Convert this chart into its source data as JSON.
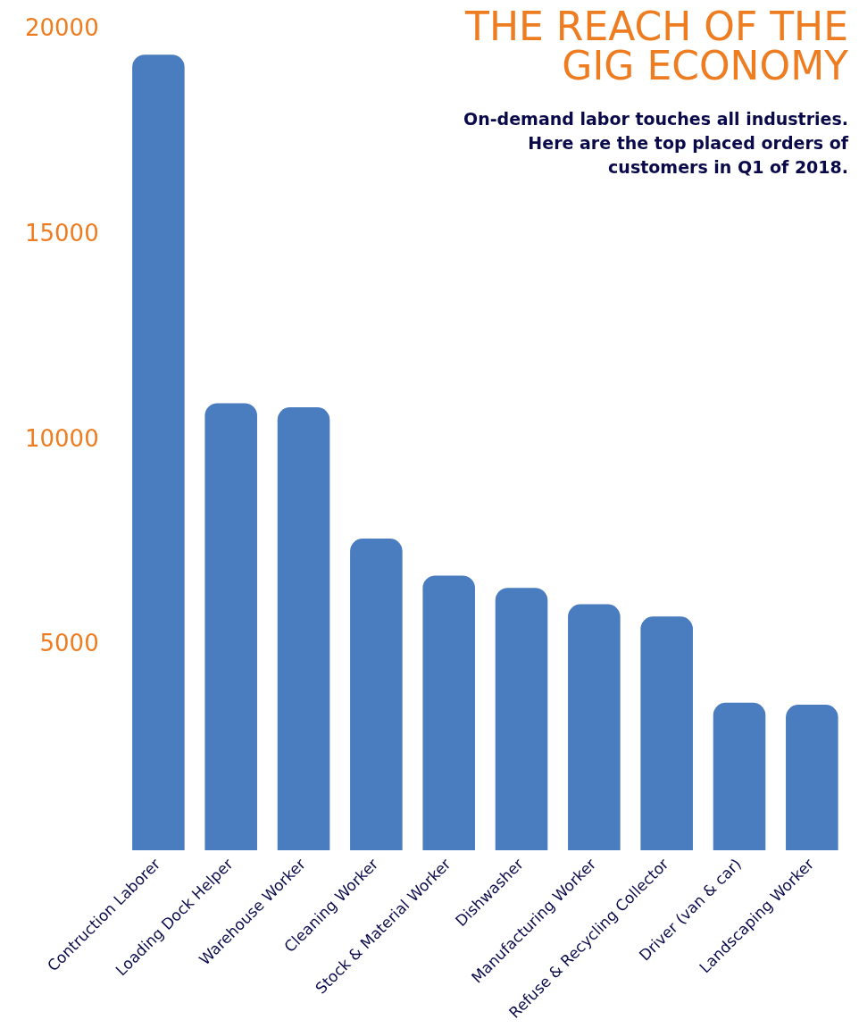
{
  "chart_data": {
    "type": "bar",
    "title": "THE REACH OF THE GIG ECONOMY",
    "subtitle": "On-demand labor touches all industries. Here are the top placed orders of customers in Q1 of 2018.",
    "categories": [
      "Contruction Laborer",
      "Loading Dock Helper",
      "Warehouse Worker",
      "Cleaning Worker",
      "Stock & Material Worker",
      "Dishwasher",
      "Manufacturing Worker",
      "Refuse & Recycling Collector",
      "Driver (van & car)",
      "Landscaping Worker"
    ],
    "values": [
      19400,
      10900,
      10800,
      7600,
      6700,
      6400,
      6000,
      5700,
      3600,
      3550
    ],
    "color": "#4a7cc0",
    "ylim": [
      0,
      20000
    ],
    "yticks": [
      5000,
      10000,
      15000,
      20000
    ],
    "grid": false,
    "legend": false
  }
}
